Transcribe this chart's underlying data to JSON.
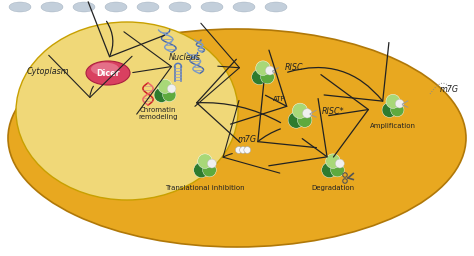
{
  "bg_color": "#FFFFFF",
  "cell_color": "#D4900A",
  "cell_color2": "#E8A820",
  "nucleus_color": "#F0D878",
  "nucleus_edge": "#C8A000",
  "cytoplasm_label": "Cytoplasm",
  "nucleus_label": "Nucleus",
  "labels": {
    "RISC": "RISC",
    "RISC_star": "RISC*",
    "ATP": "ATP",
    "m7G_top": "m7G",
    "m7G_bot": "m7G",
    "Amplification": "Amplification",
    "Degradation": "Degradation",
    "Translational": "Translational inhibition",
    "Chromatin": "Chromatin\nremodeling",
    "Dicer": "Dicer"
  },
  "arrow_color": "#222222",
  "dicer_color_main": "#D94060",
  "dicer_color_light": "#F0A0B0",
  "green_dark": "#2E7B2E",
  "green_mid": "#5EAA3E",
  "green_light": "#A8D878",
  "white_ball": "#F0F0F0",
  "dna_red1": "#CC2222",
  "dna_red2": "#EE6666",
  "dna_blue1": "#4466AA",
  "dna_blue2": "#7799CC",
  "text_color": "#222222",
  "label_fontsize": 5.8,
  "small_fontsize": 5.0,
  "tiny_fontsize": 4.5
}
